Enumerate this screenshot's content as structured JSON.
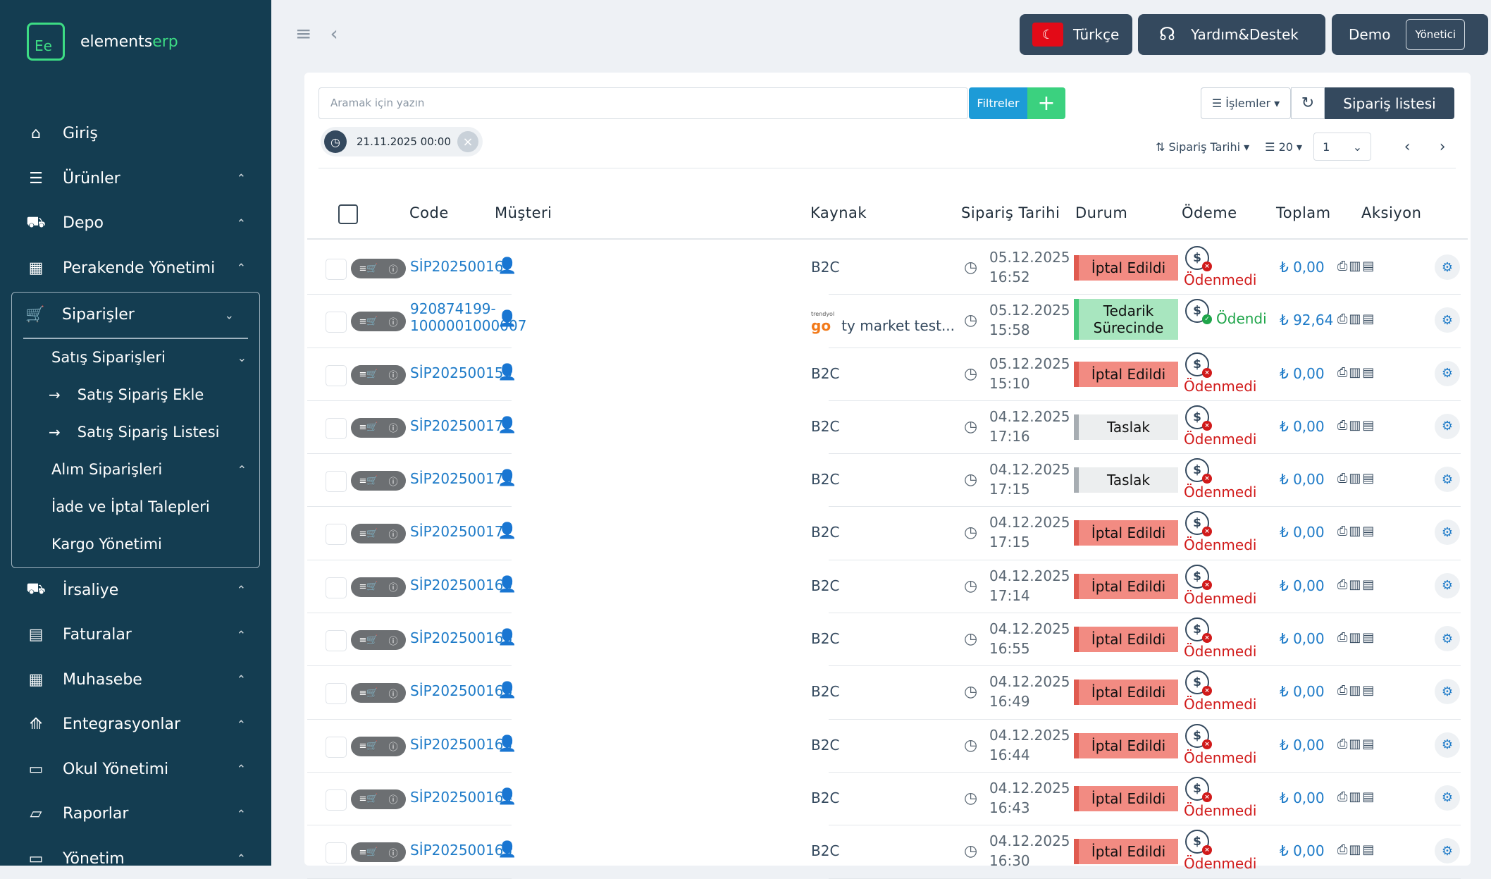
{
  "brand": {
    "logo_mark": "Ee",
    "name_a": "elements",
    "name_b": "erp"
  },
  "sidebar": {
    "items_top": [
      {
        "label": "Giriş",
        "icon": "home-icon",
        "chev": ""
      },
      {
        "label": "Ürünler",
        "icon": "list-icon",
        "chev": "⌃"
      },
      {
        "label": "Depo",
        "icon": "truck-icon",
        "chev": "⌃"
      },
      {
        "label": "Perakende Yönetimi",
        "icon": "calculator-icon",
        "chev": "⌃"
      }
    ],
    "active_group": {
      "label": "Siparişler",
      "icon": "cart-icon",
      "chev": "⌄",
      "subs": [
        {
          "label": "Satış Siparişleri",
          "chev": "⌄",
          "level": 2
        },
        {
          "label": "Satış Sipariş Ekle",
          "arrow": "→",
          "level": 3
        },
        {
          "label": "Satış Sipariş Listesi",
          "arrow": "→",
          "level": 3
        },
        {
          "label": "Alım Siparişleri",
          "chev": "⌃",
          "level": 2
        },
        {
          "label": "İade ve İptal Talepleri",
          "level": 2
        },
        {
          "label": "Kargo Yönetimi",
          "level": 2
        }
      ]
    },
    "items_bottom": [
      {
        "label": "İrsaliye",
        "icon": "truck-icon",
        "chev": "⌃"
      },
      {
        "label": "Faturalar",
        "icon": "invoice-icon",
        "chev": "⌃"
      },
      {
        "label": "Muhasebe",
        "icon": "calculator-icon",
        "chev": "⌃"
      },
      {
        "label": "Entegrasyonlar",
        "icon": "rocket-icon",
        "chev": "⌃"
      },
      {
        "label": "Okul Yönetimi",
        "icon": "briefcase-icon",
        "chev": "⌃"
      },
      {
        "label": "Raporlar",
        "icon": "map-icon",
        "chev": "⌃"
      },
      {
        "label": "Yönetim",
        "icon": "briefcase-icon",
        "chev": "⌃"
      }
    ]
  },
  "topbar": {
    "lang": "Türkçe",
    "help": "Yardım&Destek",
    "user": "Demo",
    "role": "Yönetici"
  },
  "toolbar": {
    "search_placeholder": "Aramak için yazın",
    "filter": "Filtreler",
    "add": "+",
    "date_chip": "21.11.2025 00:00",
    "ops": "İşlemler",
    "list_btn": "Sipariş listesi",
    "sort": "Sipariş Tarihi",
    "page_size": "20",
    "page": "1"
  },
  "table": {
    "headers": {
      "code": "Code",
      "customer": "Müşteri",
      "source": "Kaynak",
      "date": "Sipariş Tarihi",
      "status": "Durum",
      "payment": "Ödeme",
      "total": "Toplam",
      "action": "Aksiyon"
    },
    "rows": [
      {
        "code": "SİP202500167",
        "source": "B2C",
        "date": "05.12.2025",
        "time": "16:52",
        "status": "İptal Edildi",
        "st": "iptal",
        "pay": "Ödenmedi",
        "paid": false,
        "total": "₺ 0,00"
      },
      {
        "code": "920874199-",
        "code2": "1000001000007",
        "source": "ty market test...",
        "trendyol": true,
        "date": "05.12.2025",
        "time": "15:58",
        "status": "Tedarik Sürecinde",
        "st": "tedarik",
        "pay": "Ödendi",
        "paid": true,
        "total": "₺ 92,64"
      },
      {
        "code": "SİP202500159",
        "source": "B2C",
        "date": "05.12.2025",
        "time": "15:10",
        "status": "İptal Edildi",
        "st": "iptal",
        "pay": "Ödenmedi",
        "paid": false,
        "total": "₺ 0,00"
      },
      {
        "code": "SİP202500172",
        "source": "B2C",
        "date": "04.12.2025",
        "time": "17:16",
        "status": "Taslak",
        "st": "taslak",
        "pay": "Ödenmedi",
        "paid": false,
        "total": "₺ 0,00"
      },
      {
        "code": "SİP202500170",
        "source": "B2C",
        "date": "04.12.2025",
        "time": "17:15",
        "status": "Taslak",
        "st": "taslak",
        "pay": "Ödenmedi",
        "paid": false,
        "total": "₺ 0,00"
      },
      {
        "code": "SİP202500171",
        "source": "B2C",
        "date": "04.12.2025",
        "time": "17:15",
        "status": "İptal Edildi",
        "st": "iptal",
        "pay": "Ödenmedi",
        "paid": false,
        "total": "₺ 0,00"
      },
      {
        "code": "SİP202500169",
        "source": "B2C",
        "date": "04.12.2025",
        "time": "17:14",
        "status": "İptal Edildi",
        "st": "iptal",
        "pay": "Ödenmedi",
        "paid": false,
        "total": "₺ 0,00"
      },
      {
        "code": "SİP202500168",
        "source": "B2C",
        "date": "04.12.2025",
        "time": "16:55",
        "status": "İptal Edildi",
        "st": "iptal",
        "pay": "Ödenmedi",
        "paid": false,
        "total": "₺ 0,00"
      },
      {
        "code": "SİP202500166",
        "source": "B2C",
        "date": "04.12.2025",
        "time": "16:49",
        "status": "İptal Edildi",
        "st": "iptal",
        "pay": "Ödenmedi",
        "paid": false,
        "total": "₺ 0,00"
      },
      {
        "code": "SİP202500165",
        "source": "B2C",
        "date": "04.12.2025",
        "time": "16:44",
        "status": "İptal Edildi",
        "st": "iptal",
        "pay": "Ödenmedi",
        "paid": false,
        "total": "₺ 0,00"
      },
      {
        "code": "SİP202500164",
        "source": "B2C",
        "date": "04.12.2025",
        "time": "16:43",
        "status": "İptal Edildi",
        "st": "iptal",
        "pay": "Ödenmedi",
        "paid": false,
        "total": "₺ 0,00"
      },
      {
        "code": "SİP202500163",
        "source": "B2C",
        "date": "04.12.2025",
        "time": "16:30",
        "status": "İptal Edildi",
        "st": "iptal",
        "pay": "Ödenmedi",
        "paid": false,
        "total": "₺ 0,00"
      }
    ]
  }
}
